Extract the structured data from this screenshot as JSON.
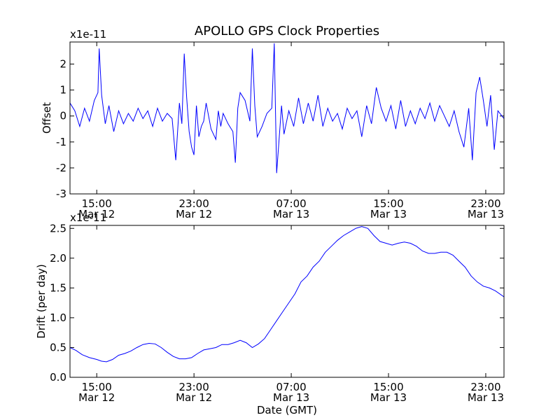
{
  "chart_data": [
    {
      "type": "line",
      "title": "APOLLO GPS Clock Properties",
      "ylabel": "Offset",
      "xlabel": "",
      "scale_label": "x1e-11",
      "ylim": [
        -3,
        2.85
      ],
      "yticks": [
        -3,
        -2,
        -1,
        0,
        1,
        2
      ],
      "ytick_labels": [
        "-3",
        "-2",
        "-1",
        "0",
        "1",
        "2"
      ],
      "xlim_hours": [
        12.8,
        48.5
      ],
      "xticks_hours": [
        15,
        23,
        31,
        39,
        47
      ],
      "xtick_labels": [
        {
          "time": "15:00",
          "date": "Mar 12"
        },
        {
          "time": "23:00",
          "date": "Mar 12"
        },
        {
          "time": "07:00",
          "date": "Mar 13"
        },
        {
          "time": "15:00",
          "date": "Mar 13"
        },
        {
          "time": "23:00",
          "date": "Mar 13"
        }
      ],
      "line_color": "#0000ff",
      "series": [
        {
          "name": "Offset",
          "x_hours": [
            12.8,
            13.2,
            13.6,
            14.0,
            14.4,
            14.8,
            15.1,
            15.2,
            15.4,
            15.7,
            16.0,
            16.4,
            16.8,
            17.2,
            17.6,
            18.0,
            18.4,
            18.8,
            19.2,
            19.6,
            20.0,
            20.4,
            20.8,
            21.2,
            21.5,
            21.8,
            22.0,
            22.2,
            22.4,
            22.6,
            22.8,
            23.0,
            23.2,
            23.4,
            23.6,
            23.8,
            24.0,
            24.4,
            24.8,
            25.0,
            25.2,
            25.4,
            25.8,
            26.2,
            26.4,
            26.6,
            26.8,
            27.2,
            27.6,
            27.8,
            28.0,
            28.2,
            28.6,
            29.0,
            29.4,
            29.6,
            29.8,
            30.0,
            30.2,
            30.4,
            30.8,
            31.2,
            31.6,
            32.0,
            32.4,
            32.8,
            33.2,
            33.6,
            34.0,
            34.4,
            34.8,
            35.2,
            35.6,
            36.0,
            36.4,
            36.8,
            37.2,
            37.6,
            38.0,
            38.4,
            38.8,
            39.2,
            39.6,
            40.0,
            40.4,
            40.8,
            41.2,
            41.6,
            42.0,
            42.4,
            42.8,
            43.2,
            43.6,
            44.0,
            44.4,
            44.8,
            45.2,
            45.6,
            45.9,
            46.2,
            46.5,
            46.8,
            47.1,
            47.4,
            47.7,
            48.0,
            48.5
          ],
          "y": [
            0.5,
            0.2,
            -0.4,
            0.3,
            -0.2,
            0.6,
            0.9,
            2.6,
            0.8,
            -0.3,
            0.4,
            -0.6,
            0.2,
            -0.3,
            0.1,
            -0.2,
            0.3,
            -0.1,
            0.2,
            -0.4,
            0.3,
            -0.2,
            0.1,
            -0.1,
            -1.7,
            0.5,
            -0.3,
            2.4,
            0.7,
            -0.6,
            -1.2,
            -1.5,
            0.4,
            -0.8,
            -0.4,
            -0.2,
            0.5,
            -0.5,
            -0.9,
            0.2,
            -0.4,
            0.1,
            -0.3,
            -0.6,
            -1.8,
            0.3,
            0.9,
            0.6,
            -0.2,
            2.6,
            0.4,
            -0.8,
            -0.4,
            0.1,
            0.3,
            2.8,
            -2.2,
            -0.9,
            0.4,
            -0.7,
            0.2,
            -0.4,
            0.7,
            -0.3,
            0.5,
            -0.2,
            0.8,
            -0.4,
            0.3,
            -0.2,
            0.1,
            -0.5,
            0.3,
            -0.1,
            0.2,
            -0.8,
            0.4,
            -0.3,
            1.1,
            0.3,
            -0.2,
            0.4,
            -0.5,
            0.6,
            -0.4,
            0.2,
            -0.3,
            0.3,
            -0.1,
            0.5,
            -0.2,
            0.4,
            0.0,
            -0.4,
            0.2,
            -0.6,
            -1.2,
            0.3,
            -1.7,
            0.9,
            1.5,
            0.6,
            -0.4,
            0.8,
            -1.3,
            0.2,
            -0.1
          ]
        }
      ]
    },
    {
      "type": "line",
      "title": "",
      "ylabel": "Drift (per day)",
      "xlabel": "Date (GMT)",
      "scale_label": "x1e-11",
      "ylim": [
        0.0,
        2.55
      ],
      "yticks": [
        0.0,
        0.5,
        1.0,
        1.5,
        2.0,
        2.5
      ],
      "ytick_labels": [
        "0.0",
        "0.5",
        "1.0",
        "1.5",
        "2.0",
        "2.5"
      ],
      "xlim_hours": [
        12.8,
        48.5
      ],
      "xticks_hours": [
        15,
        23,
        31,
        39,
        47
      ],
      "xtick_labels": [
        {
          "time": "15:00",
          "date": "Mar 12"
        },
        {
          "time": "23:00",
          "date": "Mar 12"
        },
        {
          "time": "07:00",
          "date": "Mar 13"
        },
        {
          "time": "15:00",
          "date": "Mar 13"
        },
        {
          "time": "23:00",
          "date": "Mar 13"
        }
      ],
      "line_color": "#0000ff",
      "series": [
        {
          "name": "Drift",
          "x_hours": [
            12.8,
            13.3,
            13.8,
            14.4,
            15.0,
            15.4,
            15.8,
            16.3,
            16.8,
            17.3,
            17.8,
            18.3,
            18.8,
            19.3,
            19.8,
            20.3,
            20.8,
            21.3,
            21.8,
            22.3,
            22.8,
            23.3,
            23.8,
            24.3,
            24.8,
            25.3,
            25.8,
            26.3,
            26.8,
            27.3,
            27.8,
            28.3,
            28.8,
            29.3,
            29.8,
            30.3,
            30.8,
            31.3,
            31.8,
            32.3,
            32.8,
            33.3,
            33.8,
            34.3,
            34.8,
            35.3,
            35.8,
            36.3,
            36.8,
            37.3,
            37.8,
            38.3,
            38.8,
            39.3,
            39.8,
            40.3,
            40.8,
            41.3,
            41.8,
            42.3,
            42.8,
            43.3,
            43.8,
            44.3,
            44.8,
            45.3,
            45.8,
            46.3,
            46.8,
            47.3,
            47.8,
            48.5
          ],
          "y": [
            0.5,
            0.45,
            0.38,
            0.33,
            0.3,
            0.27,
            0.26,
            0.3,
            0.37,
            0.4,
            0.44,
            0.5,
            0.55,
            0.57,
            0.56,
            0.5,
            0.42,
            0.35,
            0.31,
            0.31,
            0.33,
            0.4,
            0.46,
            0.48,
            0.5,
            0.55,
            0.55,
            0.58,
            0.62,
            0.58,
            0.5,
            0.56,
            0.65,
            0.8,
            0.95,
            1.1,
            1.25,
            1.4,
            1.6,
            1.7,
            1.85,
            1.95,
            2.1,
            2.2,
            2.3,
            2.38,
            2.44,
            2.5,
            2.53,
            2.5,
            2.38,
            2.28,
            2.25,
            2.22,
            2.25,
            2.27,
            2.25,
            2.2,
            2.12,
            2.08,
            2.08,
            2.1,
            2.1,
            2.05,
            1.95,
            1.85,
            1.7,
            1.6,
            1.53,
            1.5,
            1.45,
            1.35
          ]
        }
      ]
    }
  ]
}
